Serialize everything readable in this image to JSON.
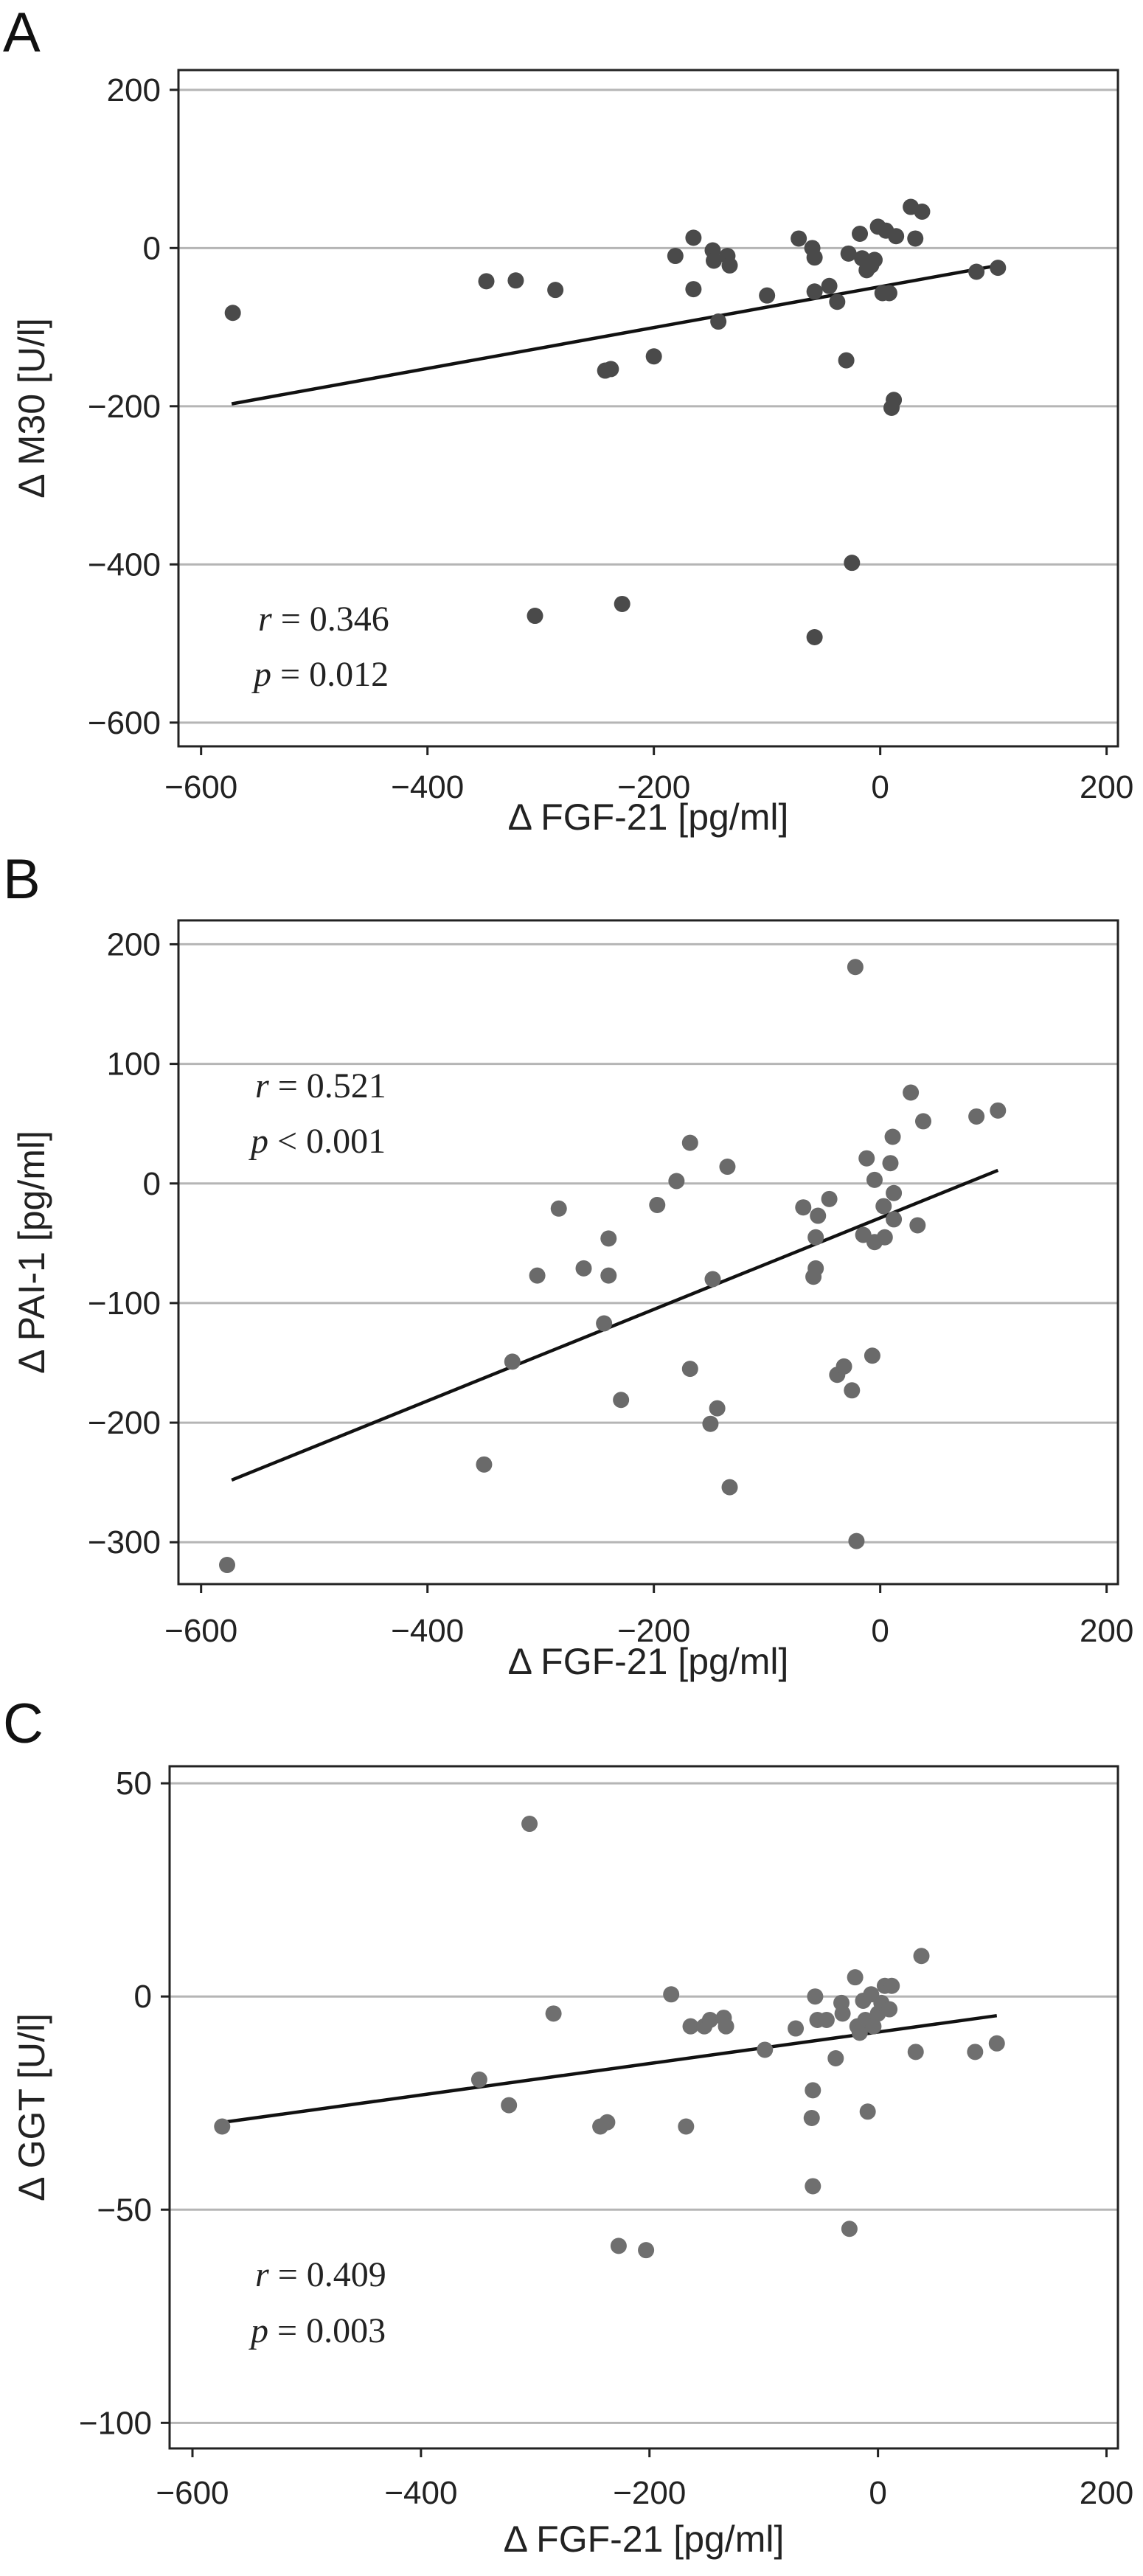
{
  "chart_data": [
    {
      "type": "scatter",
      "panel": "A",
      "xlabel": "Δ FGF-21 [pg/ml]",
      "ylabel": "Δ M30 [U/l]",
      "xlim": [
        -620,
        210
      ],
      "ylim": [
        -630,
        225
      ],
      "xticks": [
        -600,
        -400,
        -200,
        0,
        200
      ],
      "yticks": [
        200,
        0,
        -200,
        -400,
        -600
      ],
      "grid": "horizontal",
      "stats": {
        "r": "0.346",
        "p": "0.012",
        "r_prefix": "r",
        "p_prefix": "p",
        "r_op": "=",
        "p_op": "="
      },
      "fit_line": {
        "x1": -573,
        "y1": -197,
        "x2": 104,
        "y2": -22
      },
      "points": [
        {
          "x": -572,
          "y": -82
        },
        {
          "x": -348,
          "y": -42
        },
        {
          "x": -322,
          "y": -41
        },
        {
          "x": -287,
          "y": -53
        },
        {
          "x": -305,
          "y": -465
        },
        {
          "x": -228,
          "y": -450
        },
        {
          "x": -243,
          "y": -155
        },
        {
          "x": -238,
          "y": -153
        },
        {
          "x": -200,
          "y": -137
        },
        {
          "x": -181,
          "y": -10
        },
        {
          "x": -165,
          "y": 13
        },
        {
          "x": -165,
          "y": -52
        },
        {
          "x": -148,
          "y": -3
        },
        {
          "x": -147,
          "y": -16
        },
        {
          "x": -143,
          "y": -93
        },
        {
          "x": -135,
          "y": -10
        },
        {
          "x": -133,
          "y": -22
        },
        {
          "x": -100,
          "y": -60
        },
        {
          "x": -72,
          "y": 12
        },
        {
          "x": -60,
          "y": 0
        },
        {
          "x": -58,
          "y": -12
        },
        {
          "x": -58,
          "y": -55
        },
        {
          "x": -58,
          "y": -492
        },
        {
          "x": -45,
          "y": -48
        },
        {
          "x": -38,
          "y": -68
        },
        {
          "x": -30,
          "y": -142
        },
        {
          "x": -28,
          "y": -7
        },
        {
          "x": -25,
          "y": -398
        },
        {
          "x": -18,
          "y": 18
        },
        {
          "x": -16,
          "y": -13
        },
        {
          "x": -12,
          "y": -28
        },
        {
          "x": -8,
          "y": -22
        },
        {
          "x": -5,
          "y": -15
        },
        {
          "x": -2,
          "y": 27
        },
        {
          "x": 2,
          "y": -57
        },
        {
          "x": 5,
          "y": 22
        },
        {
          "x": 8,
          "y": -57
        },
        {
          "x": 10,
          "y": -202
        },
        {
          "x": 12,
          "y": -192
        },
        {
          "x": 14,
          "y": 15
        },
        {
          "x": 27,
          "y": 52
        },
        {
          "x": 31,
          "y": 12
        },
        {
          "x": 37,
          "y": 46
        },
        {
          "x": 85,
          "y": -30
        },
        {
          "x": 104,
          "y": -25
        }
      ]
    },
    {
      "type": "scatter",
      "panel": "B",
      "xlabel": "Δ FGF-21 [pg/ml]",
      "ylabel": "Δ PAI-1 [pg/ml]",
      "xlim": [
        -620,
        210
      ],
      "ylim": [
        -335,
        220
      ],
      "xticks": [
        -600,
        -400,
        -200,
        0,
        200
      ],
      "yticks": [
        200,
        100,
        0,
        -100,
        -200,
        -300
      ],
      "grid": "horizontal",
      "stats": {
        "r": "0.521",
        "p": "0.001",
        "r_prefix": "r",
        "p_prefix": "p",
        "r_op": "=",
        "p_op": "<"
      },
      "fit_line": {
        "x1": -573,
        "y1": -248,
        "x2": 104,
        "y2": 11
      },
      "points": [
        {
          "x": -577,
          "y": -319
        },
        {
          "x": -350,
          "y": -235
        },
        {
          "x": -325,
          "y": -149
        },
        {
          "x": -303,
          "y": -77
        },
        {
          "x": -284,
          "y": -21
        },
        {
          "x": -262,
          "y": -71
        },
        {
          "x": -244,
          "y": -117
        },
        {
          "x": -240,
          "y": -46
        },
        {
          "x": -240,
          "y": -77
        },
        {
          "x": -229,
          "y": -181
        },
        {
          "x": -197,
          "y": -18
        },
        {
          "x": -180,
          "y": 2
        },
        {
          "x": -168,
          "y": 34
        },
        {
          "x": -168,
          "y": -155
        },
        {
          "x": -150,
          "y": -201
        },
        {
          "x": -148,
          "y": -80
        },
        {
          "x": -144,
          "y": -188
        },
        {
          "x": -135,
          "y": 14
        },
        {
          "x": -133,
          "y": -254
        },
        {
          "x": -68,
          "y": -20
        },
        {
          "x": -59,
          "y": -78
        },
        {
          "x": -57,
          "y": -45
        },
        {
          "x": -57,
          "y": -71
        },
        {
          "x": -55,
          "y": -27
        },
        {
          "x": -45,
          "y": -13
        },
        {
          "x": -38,
          "y": -160
        },
        {
          "x": -32,
          "y": -153
        },
        {
          "x": -25,
          "y": -173
        },
        {
          "x": -22,
          "y": 181
        },
        {
          "x": -21,
          "y": -299
        },
        {
          "x": -15,
          "y": -43
        },
        {
          "x": -12,
          "y": 21
        },
        {
          "x": -7,
          "y": -144
        },
        {
          "x": -5,
          "y": 3
        },
        {
          "x": -5,
          "y": -49
        },
        {
          "x": 3,
          "y": -19
        },
        {
          "x": 4,
          "y": -45
        },
        {
          "x": 9,
          "y": 17
        },
        {
          "x": 11,
          "y": 39
        },
        {
          "x": 12,
          "y": -8
        },
        {
          "x": 12,
          "y": -30
        },
        {
          "x": 27,
          "y": 76
        },
        {
          "x": 33,
          "y": -35
        },
        {
          "x": 38,
          "y": 52
        },
        {
          "x": 85,
          "y": 56
        },
        {
          "x": 104,
          "y": 61
        }
      ]
    },
    {
      "type": "scatter",
      "panel": "C",
      "xlabel": "Δ FGF-21 [pg/ml]",
      "ylabel": "Δ GGT [U/l]",
      "xlim": [
        -620,
        210
      ],
      "ylim": [
        -106,
        54
      ],
      "xticks": [
        -600,
        -400,
        -200,
        0,
        200
      ],
      "yticks": [
        50,
        0,
        -50,
        -100
      ],
      "grid": "horizontal",
      "stats": {
        "r": "0.409",
        "p": "0.003",
        "r_prefix": "r",
        "p_prefix": "p",
        "r_op": "=",
        "p_op": "="
      },
      "fit_line": {
        "x1": -573,
        "y1": -29.5,
        "x2": 104,
        "y2": -4.5
      },
      "points": [
        {
          "x": -574,
          "y": -30.5
        },
        {
          "x": -349,
          "y": -19.5
        },
        {
          "x": -323,
          "y": -25.5
        },
        {
          "x": -305,
          "y": 40.5
        },
        {
          "x": -284,
          "y": -4
        },
        {
          "x": -243,
          "y": -30.5
        },
        {
          "x": -237,
          "y": -29.5
        },
        {
          "x": -227,
          "y": -58.5
        },
        {
          "x": -203,
          "y": -59.5
        },
        {
          "x": -181,
          "y": 0.5
        },
        {
          "x": -168,
          "y": -30.5
        },
        {
          "x": -164,
          "y": -7
        },
        {
          "x": -152,
          "y": -7
        },
        {
          "x": -147,
          "y": -5.5
        },
        {
          "x": -135,
          "y": -5
        },
        {
          "x": -133,
          "y": -7
        },
        {
          "x": -99,
          "y": -12.5
        },
        {
          "x": -72,
          "y": -7.5
        },
        {
          "x": -58,
          "y": -28.5
        },
        {
          "x": -57,
          "y": -22
        },
        {
          "x": -57,
          "y": -44.5
        },
        {
          "x": -55,
          "y": 0
        },
        {
          "x": -53,
          "y": -5.5
        },
        {
          "x": -45,
          "y": -5.5
        },
        {
          "x": -37,
          "y": -14.5
        },
        {
          "x": -32,
          "y": -1.5
        },
        {
          "x": -31,
          "y": -4
        },
        {
          "x": -25,
          "y": -54.5
        },
        {
          "x": -20,
          "y": 4.5
        },
        {
          "x": -18,
          "y": -7
        },
        {
          "x": -16,
          "y": -8.5
        },
        {
          "x": -13,
          "y": -1
        },
        {
          "x": -11,
          "y": -5.5
        },
        {
          "x": -9,
          "y": -27
        },
        {
          "x": -6,
          "y": 0.5
        },
        {
          "x": -4,
          "y": -7
        },
        {
          "x": 0,
          "y": -4
        },
        {
          "x": 3,
          "y": -1.5
        },
        {
          "x": 6,
          "y": 2.5
        },
        {
          "x": 10,
          "y": -3
        },
        {
          "x": 12,
          "y": 2.5
        },
        {
          "x": 33,
          "y": -13
        },
        {
          "x": 38,
          "y": 9.5
        },
        {
          "x": 85,
          "y": -13
        },
        {
          "x": 104,
          "y": -11
        }
      ]
    }
  ]
}
